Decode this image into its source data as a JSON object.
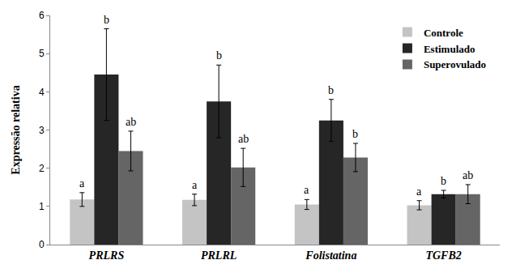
{
  "chart_data": {
    "type": "bar",
    "y_label": "Expressão relativa",
    "categories": [
      "PRLRS",
      "PRLRL",
      "Folistatina",
      "TGFB2"
    ],
    "series": [
      {
        "name": "Controle",
        "color": "#c4c4c4",
        "values": [
          1.18,
          1.17,
          1.05,
          1.03
        ],
        "errors": [
          0.18,
          0.15,
          0.13,
          0.12
        ],
        "annotations": [
          "a",
          "a",
          "a",
          "a"
        ]
      },
      {
        "name": "Estimulado",
        "color": "#262626",
        "values": [
          4.45,
          3.75,
          3.25,
          1.32
        ],
        "errors": [
          1.2,
          0.95,
          0.55,
          0.1
        ],
        "annotations": [
          "b",
          "b",
          "b",
          "b"
        ]
      },
      {
        "name": "Superovulado",
        "color": "#656565",
        "values": [
          2.45,
          2.02,
          2.28,
          1.32
        ],
        "errors": [
          0.52,
          0.5,
          0.37,
          0.25
        ],
        "annotations": [
          "ab",
          "ab",
          "b",
          "ab"
        ]
      }
    ],
    "ylim": [
      0,
      6
    ],
    "yticks": [
      0,
      1,
      2,
      3,
      4,
      5,
      6
    ],
    "grid": false,
    "legend": "upper right"
  }
}
